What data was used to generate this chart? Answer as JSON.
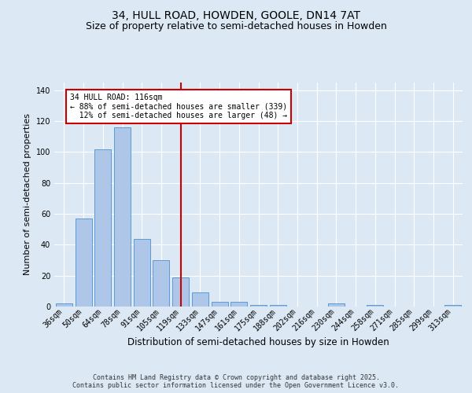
{
  "title_line1": "34, HULL ROAD, HOWDEN, GOOLE, DN14 7AT",
  "title_line2": "Size of property relative to semi-detached houses in Howden",
  "xlabel": "Distribution of semi-detached houses by size in Howden",
  "ylabel": "Number of semi-detached properties",
  "categories": [
    "36sqm",
    "50sqm",
    "64sqm",
    "78sqm",
    "91sqm",
    "105sqm",
    "119sqm",
    "133sqm",
    "147sqm",
    "161sqm",
    "175sqm",
    "188sqm",
    "202sqm",
    "216sqm",
    "230sqm",
    "244sqm",
    "258sqm",
    "271sqm",
    "285sqm",
    "299sqm",
    "313sqm"
  ],
  "values": [
    2,
    57,
    102,
    116,
    44,
    30,
    19,
    9,
    3,
    3,
    1,
    1,
    0,
    0,
    2,
    0,
    1,
    0,
    0,
    0,
    1
  ],
  "bar_color": "#aec6e8",
  "bar_edge_color": "#5b9bd5",
  "vline_x_idx": 6,
  "vline_color": "#cc0000",
  "annotation_text": "34 HULL ROAD: 116sqm\n← 88% of semi-detached houses are smaller (339)\n  12% of semi-detached houses are larger (48) →",
  "annotation_box_color": "#cc0000",
  "annotation_bg_color": "#ffffff",
  "ylim": [
    0,
    145
  ],
  "yticks": [
    0,
    20,
    40,
    60,
    80,
    100,
    120,
    140
  ],
  "footer_text": "Contains HM Land Registry data © Crown copyright and database right 2025.\nContains public sector information licensed under the Open Government Licence v3.0.",
  "background_color": "#dce9f5",
  "plot_bg_color": "#dce9f5",
  "grid_color": "#ffffff",
  "title1_fontsize": 10,
  "title2_fontsize": 9,
  "ylabel_fontsize": 8,
  "xlabel_fontsize": 8.5,
  "tick_fontsize": 7,
  "annot_fontsize": 7,
  "footer_fontsize": 6
}
